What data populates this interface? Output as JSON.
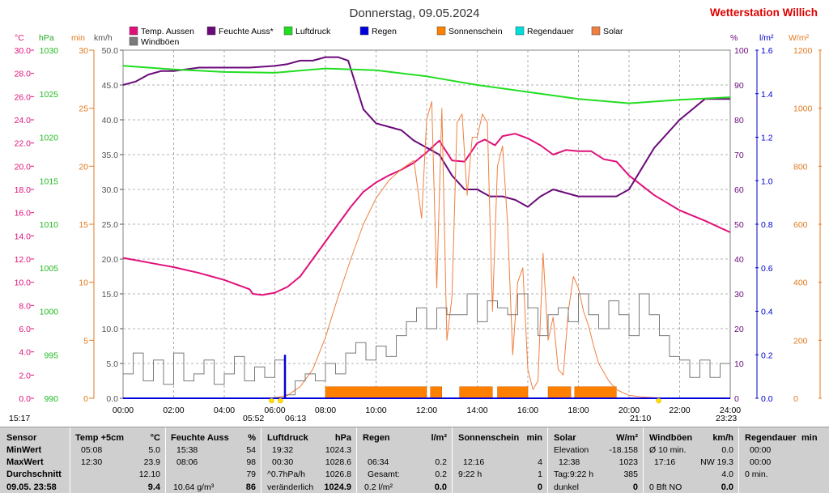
{
  "header": {
    "title": "Donnerstag, 09.05.2024",
    "station": "Wetterstation Willich"
  },
  "colors": {
    "temp": "#e0107a",
    "humidity": "#6a0a7a",
    "pressure": "#22dd22",
    "rain": "#0000dd",
    "sunshine": "#ff7f00",
    "rainduration": "#00dddd",
    "solar": "#f08040",
    "gust": "#7a7a7a",
    "grid": "#9a9a9a",
    "summary_bg": "#cfcfcf"
  },
  "legend": [
    {
      "label": "Temp. Aussen",
      "color": "#e0107a"
    },
    {
      "label": "Feuchte Auss*",
      "color": "#6a0a7a"
    },
    {
      "label": "Luftdruck",
      "color": "#22dd22"
    },
    {
      "label": "Regen",
      "color": "#0000dd"
    },
    {
      "label": "Sonnenschein",
      "color": "#ff7f00"
    },
    {
      "label": "Regendauer",
      "color": "#00dddd"
    },
    {
      "label": "Solar",
      "color": "#f08040"
    },
    {
      "label": "Windböen",
      "color": "#7a7a7a"
    }
  ],
  "axis_units": {
    "temp": "°C",
    "pressure": "hPa",
    "minutes": "min",
    "wind": "km/h",
    "humidity": "%",
    "rain": "l/m²",
    "solar": "W/m²"
  },
  "chart_data": {
    "type": "line",
    "x_ticks": [
      "00:00",
      "02:00",
      "04:00",
      "06:00",
      "08:00",
      "10:00",
      "12:00",
      "14:00",
      "16:00",
      "18:00",
      "20:00",
      "22:00",
      "24:00"
    ],
    "axes": {
      "temp": {
        "range": [
          0,
          30
        ],
        "ticks": [
          "0.0",
          "2.0",
          "4.0",
          "6.0",
          "8.0",
          "10.0",
          "12.0",
          "14.0",
          "16.0",
          "18.0",
          "20.0",
          "22.0",
          "24.0",
          "26.0",
          "28.0",
          "30.0"
        ]
      },
      "pressure": {
        "range": [
          990,
          1030
        ],
        "ticks": [
          "990",
          "995",
          "1000",
          "1005",
          "1010",
          "1015",
          "1020",
          "1025",
          "1030"
        ]
      },
      "minutes": {
        "range": [
          0,
          30
        ],
        "ticks": [
          "0",
          "5",
          "10",
          "15",
          "20",
          "25",
          "30"
        ]
      },
      "wind": {
        "range": [
          0,
          50
        ],
        "ticks": [
          "0.0",
          "5.0",
          "10.0",
          "15.0",
          "20.0",
          "25.0",
          "30.0",
          "35.0",
          "40.0",
          "45.0",
          "50.0"
        ]
      },
      "humidity": {
        "range": [
          0,
          100
        ],
        "ticks": [
          "0",
          "10",
          "20",
          "30",
          "40",
          "50",
          "60",
          "70",
          "80",
          "90",
          "100"
        ]
      },
      "rain": {
        "range": [
          0,
          1.6
        ],
        "ticks": [
          "0.0",
          "0.2",
          "0.4",
          "0.6",
          "0.8",
          "1.0",
          "1.2",
          "1.4",
          "1.6"
        ]
      },
      "solar": {
        "range": [
          0,
          1200
        ],
        "ticks": [
          "0",
          "200",
          "400",
          "600",
          "800",
          "1000",
          "1200"
        ]
      }
    },
    "series": [
      {
        "name": "Temp. Aussen",
        "axis": "temp",
        "x": [
          0,
          0.5,
          1,
          1.5,
          2,
          3,
          4,
          5,
          5.13,
          5.5,
          6,
          6.5,
          7,
          7.5,
          8,
          8.5,
          9,
          9.5,
          10,
          10.5,
          11,
          11.5,
          12,
          12.5,
          13,
          13.5,
          14,
          14.3,
          14.7,
          15,
          15.5,
          16,
          16.5,
          17,
          17.5,
          18,
          18.5,
          19,
          19.5,
          20,
          21,
          22,
          23,
          24
        ],
        "y": [
          12.1,
          11.9,
          11.7,
          11.5,
          11.3,
          10.8,
          10.2,
          9.4,
          9.0,
          8.9,
          9.1,
          9.6,
          10.5,
          12.0,
          13.5,
          15.0,
          16.5,
          17.8,
          18.6,
          19.2,
          19.7,
          20.3,
          21.2,
          22.2,
          20.5,
          20.4,
          22.0,
          22.3,
          21.8,
          22.6,
          22.8,
          22.4,
          21.8,
          21.0,
          21.4,
          21.3,
          21.3,
          20.6,
          20.4,
          19.2,
          17.5,
          16.2,
          15.3,
          14.3
        ]
      },
      {
        "name": "Feuchte Auss*",
        "axis": "humidity",
        "x": [
          0,
          0.5,
          1,
          1.5,
          2,
          3,
          4,
          5,
          6,
          6.5,
          7,
          7.5,
          8,
          8.5,
          8.9,
          9.2,
          9.5,
          10,
          10.5,
          11,
          11.5,
          12,
          12.5,
          13,
          13.5,
          14,
          14.5,
          15,
          15.5,
          16,
          16.5,
          17,
          18,
          19,
          19.5,
          20,
          20.5,
          21,
          22,
          23,
          24
        ],
        "y": [
          90,
          91,
          93,
          94,
          94,
          95,
          95,
          95,
          95.5,
          96,
          97,
          97,
          98,
          98,
          97,
          90,
          83,
          79,
          78,
          77,
          74,
          72,
          70,
          64,
          60,
          60,
          58,
          58,
          57,
          55,
          58,
          60,
          58,
          58,
          58,
          60,
          66,
          72,
          80,
          86,
          86
        ]
      },
      {
        "name": "Luftdruck",
        "axis": "pressure",
        "x": [
          0,
          2,
          4,
          6,
          8,
          10,
          12,
          14,
          16,
          18,
          20,
          22,
          24
        ],
        "y": [
          1028.2,
          1027.8,
          1027.5,
          1027.4,
          1027.9,
          1027.7,
          1027.0,
          1026.0,
          1025.2,
          1024.4,
          1023.9,
          1024.3,
          1024.6
        ]
      },
      {
        "name": "Solar",
        "axis": "solar",
        "x": [
          6,
          6.5,
          7,
          7.5,
          8,
          8.5,
          9,
          9.5,
          10,
          10.5,
          11,
          11.5,
          11.8,
          12,
          12.2,
          12.4,
          12.6,
          12.8,
          13,
          13.2,
          13.4,
          13.6,
          13.8,
          14,
          14.2,
          14.4,
          14.6,
          14.8,
          15,
          15.2,
          15.4,
          15.6,
          15.8,
          16,
          16.2,
          16.4,
          16.6,
          16.8,
          17,
          17.2,
          17.4,
          17.6,
          17.8,
          18,
          18.2,
          18.4,
          18.6,
          18.8,
          19,
          19.2,
          19.5,
          20,
          20.5,
          21,
          21.5
        ],
        "y": [
          2,
          10,
          40,
          100,
          210,
          350,
          480,
          600,
          690,
          750,
          790,
          820,
          620,
          960,
          1023,
          380,
          1000,
          200,
          350,
          950,
          980,
          700,
          900,
          900,
          980,
          950,
          300,
          800,
          870,
          600,
          150,
          400,
          450,
          100,
          30,
          60,
          500,
          200,
          280,
          100,
          80,
          300,
          420,
          380,
          300,
          250,
          180,
          120,
          90,
          60,
          30,
          10,
          5,
          2,
          0
        ]
      },
      {
        "name": "Windböen",
        "axis": "wind",
        "x": [
          0,
          0.4,
          0.8,
          1.2,
          1.6,
          2,
          2.4,
          2.8,
          3.2,
          3.6,
          4,
          4.4,
          4.8,
          5.2,
          5.6,
          6,
          6.4,
          6.8,
          7.2,
          7.6,
          8,
          8.4,
          8.8,
          9.2,
          9.6,
          10,
          10.4,
          10.8,
          11.2,
          11.6,
          12,
          12.4,
          12.8,
          13.2,
          13.6,
          14,
          14.4,
          14.8,
          15.2,
          15.6,
          16,
          16.4,
          16.8,
          17.2,
          17.6,
          18,
          18.4,
          18.8,
          19.2,
          19.6,
          20,
          20.4,
          20.8,
          21.2,
          21.6,
          22,
          22.4,
          22.8,
          23.2,
          23.6,
          24
        ],
        "y": [
          3.5,
          6.5,
          2.5,
          5.5,
          2,
          6.5,
          2.5,
          3.5,
          5.5,
          2,
          3.5,
          6,
          2.5,
          4.5,
          3,
          5.5,
          0.5,
          2.5,
          3.5,
          2.5,
          5,
          3.5,
          6.5,
          8,
          5.5,
          7.5,
          6,
          9,
          11,
          13,
          10,
          13,
          12,
          12,
          15,
          11,
          14,
          13,
          12,
          15,
          13,
          9,
          12,
          13,
          11,
          15,
          12,
          10,
          14,
          12,
          9,
          15,
          12,
          9,
          6,
          5.5,
          3,
          5.5,
          3,
          5,
          0.5
        ]
      },
      {
        "name": "Regen",
        "axis": "rain",
        "x": [
          6.4
        ],
        "y": [
          0.2
        ]
      }
    ],
    "sunshine_blocks": [
      [
        8,
        12
      ],
      [
        12.15,
        12.6
      ],
      [
        13.3,
        14.6
      ],
      [
        14.8,
        16.0
      ],
      [
        16.8,
        17.7
      ],
      [
        17.85,
        19.5
      ]
    ],
    "sun_events": {
      "sunrise": "05:52",
      "civil_dawn": "06:13",
      "sunset": "21:10",
      "moonset": "23:23",
      "moonrise_prev": "15:17"
    }
  },
  "summary": {
    "sensor": {
      "header": "Sensor",
      "rows": [
        "MinWert",
        "MaxWert",
        "Durchschnitt",
        "09.05. 23:58"
      ]
    },
    "temp": {
      "header": "Temp +5cm",
      "unit": "°C",
      "rows": [
        [
          "05:08",
          "5.0"
        ],
        [
          "12:30",
          "23.9"
        ],
        [
          "",
          "12.10"
        ],
        [
          "",
          "9.4"
        ]
      ]
    },
    "humidity": {
      "header": "Feuchte Auss",
      "unit": "%",
      "rows": [
        [
          "15:38",
          "54"
        ],
        [
          "08:06",
          "98"
        ],
        [
          "",
          "79"
        ],
        [
          "10.64 g/m³",
          "86"
        ]
      ]
    },
    "pressure": {
      "header": "Luftdruck",
      "unit": "hPa",
      "rows": [
        [
          "19:32",
          "1024.3"
        ],
        [
          "00:30",
          "1028.6"
        ],
        [
          "^0.7hPa/h",
          "1026.8"
        ],
        [
          "veränderlich",
          "1024.9"
        ]
      ]
    },
    "rain": {
      "header": "Regen",
      "unit": "l/m²",
      "rows": [
        [
          "",
          ""
        ],
        [
          "06:34",
          "0.2"
        ],
        [
          "Gesamt:",
          "0.2"
        ],
        [
          "0.2 l/m²",
          "0.0"
        ]
      ]
    },
    "sunshine": {
      "header": "Sonnenschein",
      "unit": "min",
      "rows": [
        [
          "",
          ""
        ],
        [
          "12:16",
          "4"
        ],
        [
          "9:22 h",
          "1"
        ],
        [
          "",
          "0"
        ]
      ]
    },
    "solar": {
      "header": "Solar",
      "unit": "W/m²",
      "rows": [
        [
          "Elevation",
          "-18.158"
        ],
        [
          "12:38",
          "1023"
        ],
        [
          "Tag:9:22 h",
          "385"
        ],
        [
          "dunkel",
          "0"
        ]
      ]
    },
    "wind": {
      "header": "Windböen",
      "unit": "km/h",
      "rows": [
        [
          "Ø 10 min.",
          "0.0"
        ],
        [
          "17:16",
          "NW 19.3"
        ],
        [
          "",
          "4.0"
        ],
        [
          "0 Bft NO",
          "0.0"
        ]
      ]
    },
    "rainduration": {
      "header": "Regendauer",
      "unit": "min",
      "rows": [
        [
          "00:00",
          ""
        ],
        [
          "00:00",
          ""
        ],
        [
          "0 min.",
          ""
        ],
        [
          "",
          ""
        ]
      ]
    }
  }
}
